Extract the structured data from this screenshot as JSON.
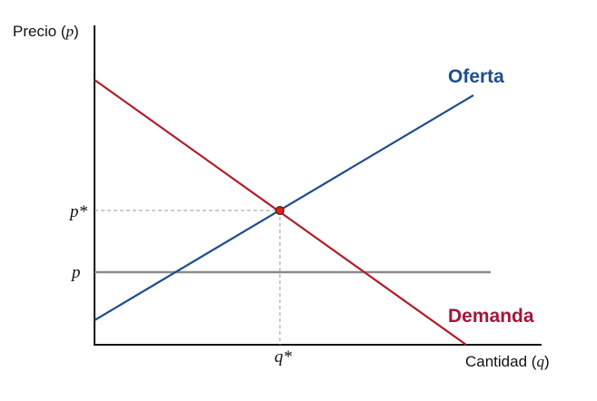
{
  "diagram": {
    "y_axis_label_prefix": "Precio (",
    "y_axis_label_var": "p",
    "y_axis_label_suffix": ")",
    "x_axis_label_prefix": "Cantidad (",
    "x_axis_label_var": "q",
    "x_axis_label_suffix": ")",
    "equilibrium_price_label": "p*",
    "price_label": "p",
    "equilibrium_quantity_label": "q*",
    "supply_label": "Oferta",
    "demand_label": "Demanda"
  },
  "colors": {
    "supply": "#1f4e8c",
    "demand": "#b01e2a",
    "demand_label": "#a3163a",
    "price_line": "#8a8a8a",
    "guide": "#999999",
    "equilibrium_point": "#d0241c",
    "axis": "#111111"
  }
}
